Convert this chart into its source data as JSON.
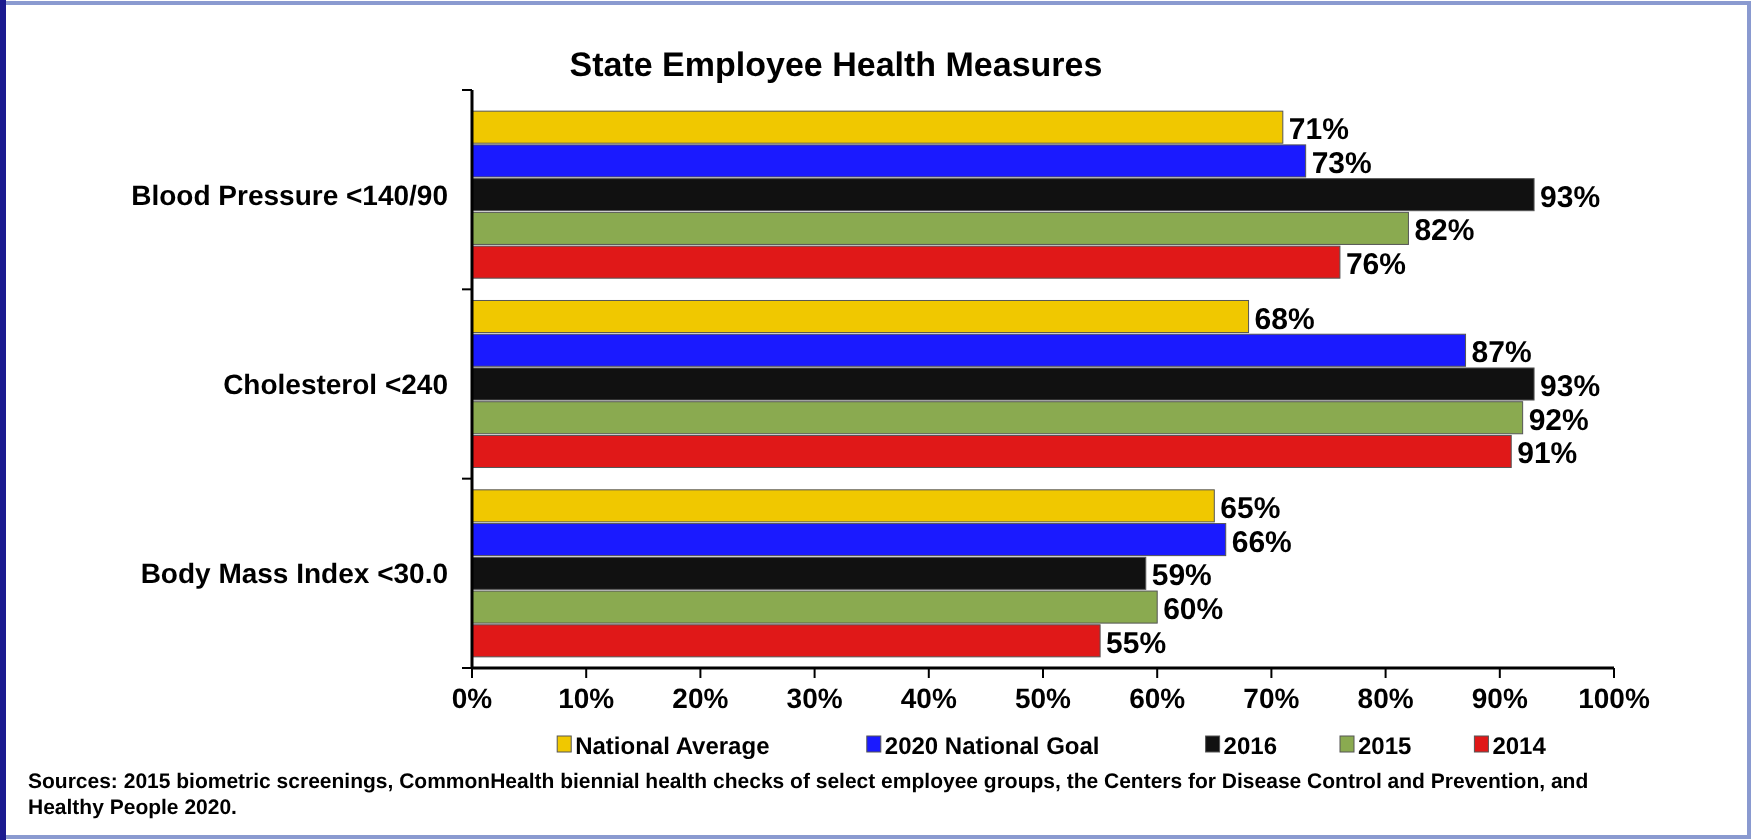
{
  "chart_data": {
    "type": "bar",
    "orientation": "horizontal",
    "title": "State Employee  Health Measures",
    "categories": [
      "Blood Pressure  <140/90",
      "Cholesterol  <240",
      "Body Mass Index <30.0"
    ],
    "series": [
      {
        "name": "National Average",
        "color": "#f0c800",
        "values": [
          71,
          68,
          65
        ],
        "value_labels": [
          "71%",
          "68%",
          "65%"
        ]
      },
      {
        "name": "2020 National Goal",
        "color": "#1a1aff",
        "values": [
          73,
          87,
          66
        ],
        "value_labels": [
          "73%",
          "87%",
          "66%"
        ]
      },
      {
        "name": "2016",
        "color": "#111111",
        "values": [
          93,
          93,
          59
        ],
        "value_labels": [
          "93%",
          "93%",
          "59%"
        ]
      },
      {
        "name": "2015",
        "color": "#8aaa50",
        "values": [
          82,
          92,
          60
        ],
        "value_labels": [
          "82%",
          "92%",
          "60%"
        ]
      },
      {
        "name": "2014",
        "color": "#e01818",
        "values": [
          76,
          91,
          55
        ],
        "value_labels": [
          "76%",
          "91%",
          "55%"
        ]
      }
    ],
    "xlim": [
      0,
      100
    ],
    "xticks": [
      {
        "value": 0,
        "label": "0%"
      },
      {
        "value": 10,
        "label": "10%"
      },
      {
        "value": 20,
        "label": "20%"
      },
      {
        "value": 30,
        "label": "30%"
      },
      {
        "value": 40,
        "label": "40%"
      },
      {
        "value": 50,
        "label": "50%"
      },
      {
        "value": 60,
        "label": "60%"
      },
      {
        "value": 70,
        "label": "70%"
      },
      {
        "value": 80,
        "label": "80%"
      },
      {
        "value": 90,
        "label": "90%"
      },
      {
        "value": 100,
        "label": "100%"
      }
    ],
    "grid": false,
    "legend": "bottom",
    "annotations": [
      "Sources: 2015 biometric screenings, CommonHealth biennial health checks of select employee groups, the Centers for Disease Control and Prevention, and Healthy People 2020."
    ]
  }
}
